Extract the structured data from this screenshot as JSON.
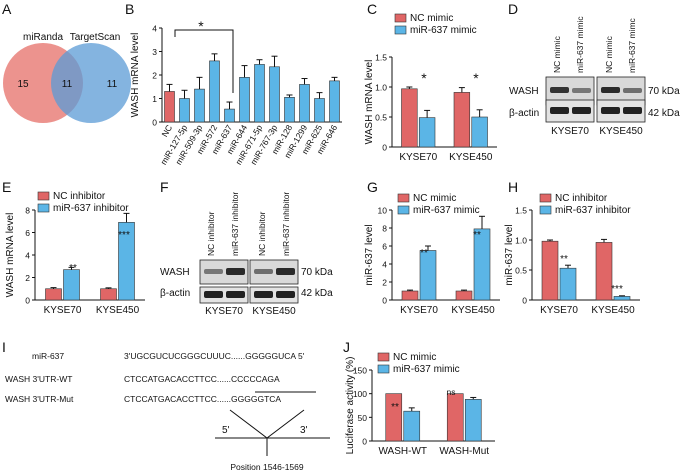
{
  "colors": {
    "red": "#e06666",
    "blue": "#5bb5e6",
    "venn_red": "#e9807a",
    "venn_blue": "#5b9bd5"
  },
  "panels": {
    "A": {
      "letter": "A",
      "left_label": "miRanda",
      "right_label": "TargetScan",
      "left_only": "15",
      "overlap": "11",
      "right_only": "11"
    },
    "B": {
      "letter": "B",
      "sig": "*"
    },
    "C": {
      "letter": "C",
      "sig": [
        "*",
        "*"
      ]
    },
    "D": {
      "letter": "D",
      "lanes": [
        "NC mimic",
        "miR-637 mimic",
        "NC mimic",
        "miR-637 mimc"
      ],
      "rows": [
        "WASH",
        "β-actin"
      ],
      "kda": [
        "70 kDa",
        "42 kDa"
      ],
      "groups": [
        "KYSE70",
        "KYSE450"
      ]
    },
    "E": {
      "letter": "E",
      "sig": [
        "**",
        "***"
      ]
    },
    "F": {
      "letter": "F",
      "lanes": [
        "NC inhibitor",
        "miR-637 inhibitor",
        "NC inhibitor",
        "miR-637 inhibitor"
      ],
      "rows": [
        "WASH",
        "β-actin"
      ],
      "kda": [
        "70 kDa",
        "42 kDa"
      ],
      "groups": [
        "KYSE70",
        "KYSE450"
      ]
    },
    "G": {
      "letter": "G",
      "sig": [
        "**",
        "**"
      ]
    },
    "H": {
      "letter": "H",
      "sig": [
        "**",
        "***"
      ]
    },
    "I": {
      "letter": "I",
      "rows": [
        {
          "label": "miR-637",
          "seq": "3'UGCGUCUCGGGCUUUC......GGGGGUCA 5'"
        },
        {
          "label": "WASH 3'UTR-WT",
          "seq": "CTCCATGACACCTTCC......CCCCCAGA"
        },
        {
          "label": "WASH 3'UTR-Mut",
          "seq": "CTCCATGACACCTTCC......GGGGGTCA"
        }
      ],
      "end5": "5'",
      "end3": "3'",
      "position": "Position 1546-1569"
    },
    "J": {
      "letter": "J",
      "sig": [
        "**",
        "ns"
      ]
    }
  },
  "chart_data": [
    {
      "panel": "B",
      "type": "bar",
      "ylabel": "WASH mRNA level",
      "ylim": [
        0,
        4
      ],
      "yticks": [
        0,
        1,
        2,
        3,
        4
      ],
      "categories": [
        "NC",
        "miR-127-5p",
        "miR-509-3p",
        "miR-572",
        "miR-637",
        "miR-644",
        "miR-671-5p",
        "miR-767-3p",
        "miR-128",
        "miR-1299",
        "miR-625",
        "miR-646"
      ],
      "values": [
        1.3,
        1.0,
        1.4,
        2.6,
        0.55,
        1.9,
        2.45,
        2.35,
        1.05,
        1.6,
        1.0,
        1.75
      ],
      "errors": [
        0.3,
        0.35,
        0.5,
        0.3,
        0.3,
        0.5,
        0.2,
        0.45,
        0.1,
        0.25,
        0.25,
        0.15
      ]
    },
    {
      "panel": "C",
      "type": "bar",
      "ylabel": "WASH mRNA level",
      "ylim": [
        0,
        1.5
      ],
      "yticks": [
        0,
        0.5,
        1.0,
        1.5
      ],
      "categories": [
        "KYSE70",
        "KYSE450"
      ],
      "series": [
        {
          "name": "NC mimic",
          "values": [
            0.97,
            0.91
          ],
          "errors": [
            0.03,
            0.08
          ]
        },
        {
          "name": "miR-637 mimic",
          "values": [
            0.49,
            0.5
          ],
          "errors": [
            0.12,
            0.12
          ]
        }
      ]
    },
    {
      "panel": "E",
      "type": "bar",
      "ylabel": "WASH mRNA level",
      "ylim": [
        0,
        8
      ],
      "yticks": [
        0,
        2,
        4,
        6,
        8
      ],
      "categories": [
        "KYSE70",
        "KYSE450"
      ],
      "series": [
        {
          "name": "NC inhibitor",
          "values": [
            1.0,
            1.0
          ],
          "errors": [
            0.1,
            0.08
          ]
        },
        {
          "name": "miR-637 inhibitor",
          "values": [
            2.7,
            6.9
          ],
          "errors": [
            0.2,
            0.8
          ]
        }
      ]
    },
    {
      "panel": "G",
      "type": "bar",
      "ylabel": "miR-637  level",
      "ylim": [
        0,
        10
      ],
      "yticks": [
        0,
        2,
        4,
        6,
        8,
        10
      ],
      "categories": [
        "KYSE70",
        "KYSE450"
      ],
      "series": [
        {
          "name": "NC mimic",
          "values": [
            1.0,
            1.0
          ],
          "errors": [
            0.1,
            0.1
          ]
        },
        {
          "name": "miR-637 mimic",
          "values": [
            5.5,
            7.9
          ],
          "errors": [
            0.5,
            1.4
          ]
        }
      ]
    },
    {
      "panel": "H",
      "type": "bar",
      "ylabel": "miR-637  level",
      "ylim": [
        0,
        1.5
      ],
      "yticks": [
        0,
        0.5,
        1.0,
        1.5
      ],
      "categories": [
        "KYSE70",
        "KYSE450"
      ],
      "series": [
        {
          "name": "NC inhibitor",
          "values": [
            0.98,
            0.96
          ],
          "errors": [
            0.02,
            0.05
          ]
        },
        {
          "name": "miR-637 inhibitor",
          "values": [
            0.53,
            0.06
          ],
          "errors": [
            0.05,
            0.01
          ]
        }
      ]
    },
    {
      "panel": "J",
      "type": "bar",
      "ylabel": "Luciferase activity (%)",
      "ylim": [
        0,
        150
      ],
      "yticks": [
        0,
        50,
        100,
        150
      ],
      "categories": [
        "WASH-WT",
        "WASH-Mut"
      ],
      "series": [
        {
          "name": "NC mimic",
          "values": [
            100,
            100
          ],
          "errors": [
            0,
            0
          ]
        },
        {
          "name": "miR-637 mimic",
          "values": [
            63,
            88
          ],
          "errors": [
            7,
            4
          ]
        }
      ]
    }
  ]
}
